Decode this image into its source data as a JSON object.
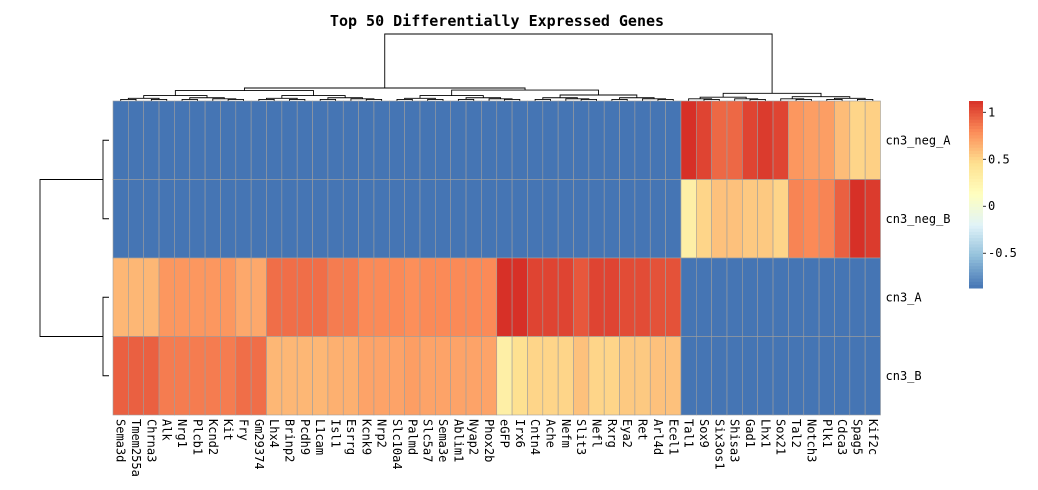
{
  "chart_data": {
    "type": "heatmap",
    "title": "Top 50 Differentially Expressed Genes",
    "rows": [
      "cn3_neg_A",
      "cn3_neg_B",
      "cn3_A",
      "cn3_B"
    ],
    "columns": [
      "Sema3d",
      "Tmem255a",
      "Chrna3",
      "Alk",
      "Nrg1",
      "Plcb1",
      "Kcnd2",
      "Kit",
      "Fry",
      "Gm29374",
      "Lhx4",
      "Brinp2",
      "Pcdh9",
      "L1cam",
      "Isl1",
      "Esrrg",
      "Kcnk9",
      "Nrp2",
      "Slc10a4",
      "Palmd",
      "Slc5a7",
      "Sema3e",
      "Ablim1",
      "Nyap2",
      "Phox2b",
      "eGFP",
      "Irx6",
      "Cntn4",
      "Ache",
      "Nefm",
      "Slit3",
      "Nefl",
      "Rxrg",
      "Eya2",
      "Ret",
      "Arl4d",
      "Ecel1",
      "Tal1",
      "Sox9",
      "Six3os1",
      "Shisa3",
      "Gad1",
      "Lhx1",
      "Sox21",
      "Tal2",
      "Notch3",
      "Plk1",
      "Cdca3",
      "Spag5",
      "Kif2c"
    ],
    "values": [
      [
        -0.87,
        -0.87,
        -0.87,
        -0.87,
        -0.87,
        -0.87,
        -0.87,
        -0.87,
        -0.87,
        -0.87,
        -0.87,
        -0.87,
        -0.87,
        -0.87,
        -0.87,
        -0.87,
        -0.87,
        -0.87,
        -0.87,
        -0.87,
        -0.87,
        -0.87,
        -0.87,
        -0.87,
        -0.87,
        -0.87,
        -0.87,
        -0.87,
        -0.87,
        -0.87,
        -0.87,
        -0.87,
        -0.87,
        -0.87,
        -0.87,
        -0.87,
        -0.87,
        1.12,
        1.05,
        0.92,
        0.92,
        1.05,
        1.08,
        1.05,
        0.75,
        0.72,
        0.72,
        0.6,
        0.5,
        0.52
      ],
      [
        -0.87,
        -0.87,
        -0.87,
        -0.87,
        -0.87,
        -0.87,
        -0.87,
        -0.87,
        -0.87,
        -0.87,
        -0.87,
        -0.87,
        -0.87,
        -0.87,
        -0.87,
        -0.87,
        -0.87,
        -0.87,
        -0.87,
        -0.87,
        -0.87,
        -0.87,
        -0.87,
        -0.87,
        -0.87,
        -0.87,
        -0.87,
        -0.87,
        -0.87,
        -0.87,
        -0.87,
        -0.87,
        -0.87,
        -0.87,
        -0.87,
        -0.87,
        -0.87,
        0.3,
        0.5,
        0.58,
        0.58,
        0.55,
        0.55,
        0.5,
        0.82,
        0.8,
        0.82,
        0.95,
        1.12,
        1.08
      ],
      [
        0.62,
        0.62,
        0.62,
        0.75,
        0.75,
        0.75,
        0.75,
        0.75,
        0.68,
        0.68,
        0.9,
        0.9,
        0.9,
        0.9,
        0.85,
        0.85,
        0.8,
        0.8,
        0.8,
        0.78,
        0.8,
        0.8,
        0.8,
        0.8,
        0.8,
        1.12,
        1.12,
        1.05,
        1.05,
        1.05,
        0.98,
        1.05,
        1.05,
        1.02,
        1.02,
        1.0,
        1.0,
        -0.87,
        -0.87,
        -0.87,
        -0.87,
        -0.87,
        -0.87,
        -0.87,
        -0.87,
        -0.87,
        -0.87,
        -0.87,
        -0.87,
        -0.87
      ],
      [
        0.95,
        0.95,
        0.95,
        0.85,
        0.85,
        0.85,
        0.85,
        0.85,
        0.9,
        0.9,
        0.62,
        0.62,
        0.62,
        0.62,
        0.65,
        0.65,
        0.7,
        0.7,
        0.7,
        0.72,
        0.7,
        0.7,
        0.7,
        0.7,
        0.7,
        0.3,
        0.45,
        0.5,
        0.5,
        0.5,
        0.58,
        0.5,
        0.5,
        0.55,
        0.55,
        0.58,
        0.58,
        -0.87,
        -0.87,
        -0.87,
        -0.87,
        -0.87,
        -0.87,
        -0.87,
        -0.87,
        -0.87,
        -0.87,
        -0.87,
        -0.87,
        -0.87
      ]
    ],
    "color_range": [
      -0.87,
      1.12
    ],
    "colors": [
      "#4575b4",
      "#91bfdb",
      "#e0f3f8",
      "#ffffbf",
      "#fee090",
      "#fc8d59",
      "#d73027"
    ],
    "legend": {
      "ticks": [
        1,
        0.5,
        0,
        -0.5
      ],
      "tick_labels": [
        "1",
        "0.5",
        "0",
        "-0.5"
      ]
    }
  }
}
